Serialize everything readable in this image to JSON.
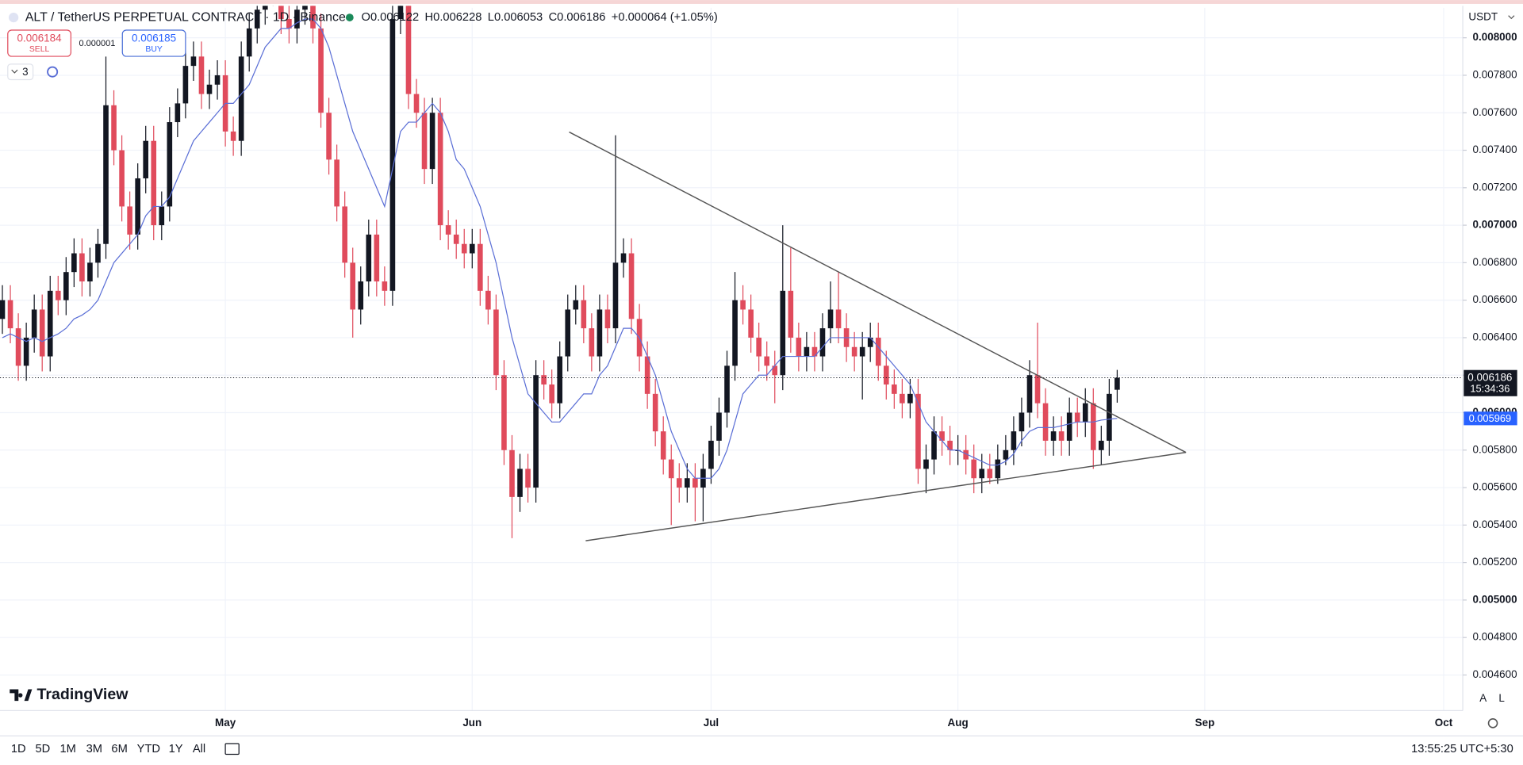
{
  "header": {
    "title": "ALT / TetherUS PERPETUAL CONTRACT · 1D · Binance",
    "legend": [
      {
        "label": "O",
        "value": "0.006122"
      },
      {
        "label": "H",
        "value": "0.006228"
      },
      {
        "label": "L",
        "value": "0.006053"
      },
      {
        "label": "C",
        "value": "0.006186"
      }
    ],
    "change": "+0.000064 (+1.05%)",
    "currency": "USDT"
  },
  "trade": {
    "sell_price": "0.006184",
    "sell": "SELL",
    "spread": "0.000001",
    "buy_price": "0.006185",
    "buy": "BUY"
  },
  "indicators_count": 3,
  "chart_data": {
    "type": "candlestick",
    "open": [
      0.0065,
      0.0066,
      0.00645,
      0.00625,
      0.0064,
      0.00655,
      0.0063,
      0.00665,
      0.0066,
      0.00675,
      0.00685,
      0.0067,
      0.0068,
      0.0069,
      0.00764,
      0.0074,
      0.0071,
      0.00695,
      0.00725,
      0.00745,
      0.007,
      0.0071,
      0.00755,
      0.00765,
      0.00785,
      0.0079,
      0.0077,
      0.00775,
      0.0078,
      0.0075,
      0.00745,
      0.0079,
      0.00805,
      0.00815,
      0.00825,
      0.0083,
      0.0081,
      0.00805,
      0.00815,
      0.0082,
      0.00805,
      0.0076,
      0.00735,
      0.0071,
      0.0068,
      0.00655,
      0.0067,
      0.00695,
      0.0067,
      0.00665,
      0.0081,
      0.00825,
      0.0077,
      0.0076,
      0.0073,
      0.0076,
      0.007,
      0.00695,
      0.0069,
      0.00685,
      0.0069,
      0.00665,
      0.00655,
      0.0062,
      0.0058,
      0.00555,
      0.0057,
      0.0056,
      0.0062,
      0.00615,
      0.00605,
      0.0063,
      0.00655,
      0.0066,
      0.00645,
      0.0063,
      0.00655,
      0.00645,
      0.0068,
      0.00685,
      0.0065,
      0.0063,
      0.0061,
      0.0059,
      0.00575,
      0.00565,
      0.0056,
      0.00565,
      0.0056,
      0.0057,
      0.00585,
      0.006,
      0.00625,
      0.0066,
      0.00655,
      0.0064,
      0.0063,
      0.00625,
      0.0062,
      0.00665,
      0.0064,
      0.0063,
      0.00635,
      0.0063,
      0.00645,
      0.00655,
      0.00645,
      0.00635,
      0.0063,
      0.00635,
      0.0064,
      0.00625,
      0.00615,
      0.0061,
      0.00605,
      0.0061,
      0.0057,
      0.00575,
      0.0059,
      0.00585,
      0.0058,
      0.0058,
      0.00575,
      0.00565,
      0.0057,
      0.00565,
      0.00575,
      0.0058,
      0.0059,
      0.006,
      0.0062,
      0.00605,
      0.00585,
      0.0059,
      0.00585,
      0.006,
      0.00595,
      0.00605,
      0.0058,
      0.00585,
      0.006122
    ],
    "high": [
      0.00668,
      0.00668,
      0.00653,
      0.00648,
      0.00663,
      0.00663,
      0.00673,
      0.00673,
      0.00683,
      0.00693,
      0.00693,
      0.00688,
      0.00698,
      0.0079,
      0.00772,
      0.00748,
      0.00718,
      0.00733,
      0.00753,
      0.00753,
      0.00718,
      0.00763,
      0.00773,
      0.00793,
      0.00798,
      0.00798,
      0.00783,
      0.00788,
      0.00788,
      0.00758,
      0.00798,
      0.00813,
      0.00823,
      0.00833,
      0.00838,
      0.00838,
      0.00818,
      0.00823,
      0.00828,
      0.00828,
      0.00813,
      0.00768,
      0.00743,
      0.00718,
      0.00688,
      0.00678,
      0.00703,
      0.00703,
      0.00678,
      0.0083,
      0.0084,
      0.00833,
      0.00778,
      0.00768,
      0.00768,
      0.00768,
      0.00708,
      0.00703,
      0.00698,
      0.00698,
      0.00698,
      0.00673,
      0.00663,
      0.00628,
      0.00588,
      0.00578,
      0.00578,
      0.00628,
      0.00628,
      0.00623,
      0.00638,
      0.00663,
      0.00668,
      0.00668,
      0.00653,
      0.00663,
      0.00663,
      0.00748,
      0.00693,
      0.00693,
      0.00658,
      0.00638,
      0.00618,
      0.00598,
      0.00583,
      0.00573,
      0.00573,
      0.00573,
      0.00578,
      0.00593,
      0.00608,
      0.00633,
      0.00675,
      0.00668,
      0.00663,
      0.00648,
      0.00638,
      0.00633,
      0.007,
      0.00688,
      0.00648,
      0.00643,
      0.00643,
      0.00653,
      0.0067,
      0.00675,
      0.00653,
      0.00643,
      0.00643,
      0.00648,
      0.00648,
      0.00633,
      0.00623,
      0.00618,
      0.00618,
      0.00618,
      0.00583,
      0.00598,
      0.00598,
      0.00593,
      0.00588,
      0.00588,
      0.00583,
      0.00578,
      0.00578,
      0.00583,
      0.00588,
      0.00598,
      0.00608,
      0.00628,
      0.00648,
      0.00613,
      0.00598,
      0.00598,
      0.00608,
      0.00608,
      0.00613,
      0.00613,
      0.00593,
      0.00618,
      0.006228
    ],
    "low": [
      0.00642,
      0.00637,
      0.00617,
      0.00617,
      0.00632,
      0.00622,
      0.00622,
      0.00652,
      0.00652,
      0.00667,
      0.00662,
      0.00662,
      0.00672,
      0.00682,
      0.00732,
      0.00702,
      0.00687,
      0.00687,
      0.00717,
      0.00692,
      0.00692,
      0.00702,
      0.00747,
      0.00757,
      0.00777,
      0.00762,
      0.00762,
      0.00767,
      0.00742,
      0.00737,
      0.00737,
      0.00782,
      0.00797,
      0.00807,
      0.00817,
      0.00802,
      0.00797,
      0.00797,
      0.00807,
      0.00797,
      0.00752,
      0.00727,
      0.00702,
      0.00672,
      0.0064,
      0.00647,
      0.00662,
      0.00662,
      0.00657,
      0.00657,
      0.00802,
      0.00762,
      0.00752,
      0.00722,
      0.00722,
      0.00692,
      0.00687,
      0.00682,
      0.00677,
      0.00677,
      0.00657,
      0.00647,
      0.00612,
      0.00572,
      0.00533,
      0.00547,
      0.00552,
      0.00552,
      0.00607,
      0.00597,
      0.00597,
      0.00622,
      0.00647,
      0.00637,
      0.00622,
      0.00622,
      0.00637,
      0.00637,
      0.00672,
      0.00642,
      0.00622,
      0.00602,
      0.00582,
      0.00567,
      0.0054,
      0.00552,
      0.00552,
      0.00542,
      0.00542,
      0.00562,
      0.00577,
      0.00592,
      0.00617,
      0.00647,
      0.00632,
      0.00622,
      0.00617,
      0.00605,
      0.00612,
      0.00632,
      0.00622,
      0.00622,
      0.00622,
      0.00622,
      0.00637,
      0.00637,
      0.00627,
      0.00622,
      0.00607,
      0.00627,
      0.00617,
      0.00607,
      0.00602,
      0.00597,
      0.00597,
      0.00562,
      0.00557,
      0.00567,
      0.00577,
      0.00572,
      0.00572,
      0.00567,
      0.00557,
      0.00557,
      0.00562,
      0.00562,
      0.00572,
      0.00572,
      0.00582,
      0.00592,
      0.00597,
      0.00577,
      0.00577,
      0.00577,
      0.00577,
      0.00587,
      0.00587,
      0.0057,
      0.00572,
      0.00577,
      0.006053
    ],
    "close": [
      0.0066,
      0.00645,
      0.00625,
      0.0064,
      0.00655,
      0.0063,
      0.00665,
      0.0066,
      0.00675,
      0.00685,
      0.0067,
      0.0068,
      0.0069,
      0.00764,
      0.0074,
      0.0071,
      0.00695,
      0.00725,
      0.00745,
      0.007,
      0.0071,
      0.00755,
      0.00765,
      0.00785,
      0.0079,
      0.0077,
      0.00775,
      0.0078,
      0.0075,
      0.00745,
      0.0079,
      0.00805,
      0.00815,
      0.00825,
      0.0083,
      0.0081,
      0.00805,
      0.00815,
      0.0082,
      0.00805,
      0.0076,
      0.00735,
      0.0071,
      0.0068,
      0.00655,
      0.0067,
      0.00695,
      0.0067,
      0.00665,
      0.0081,
      0.00825,
      0.0077,
      0.0076,
      0.0073,
      0.0076,
      0.007,
      0.00695,
      0.0069,
      0.00685,
      0.0069,
      0.00665,
      0.00655,
      0.0062,
      0.0058,
      0.00555,
      0.0057,
      0.0056,
      0.0062,
      0.00615,
      0.00605,
      0.0063,
      0.00655,
      0.0066,
      0.00645,
      0.0063,
      0.00655,
      0.00645,
      0.0068,
      0.00685,
      0.0065,
      0.0063,
      0.0061,
      0.0059,
      0.00575,
      0.00565,
      0.0056,
      0.00565,
      0.0056,
      0.0057,
      0.00585,
      0.006,
      0.00625,
      0.0066,
      0.00655,
      0.0064,
      0.0063,
      0.00625,
      0.0062,
      0.00665,
      0.0064,
      0.0063,
      0.00635,
      0.0063,
      0.00645,
      0.00655,
      0.00645,
      0.00635,
      0.0063,
      0.00635,
      0.0064,
      0.00625,
      0.00615,
      0.0061,
      0.00605,
      0.0061,
      0.0057,
      0.00575,
      0.0059,
      0.00585,
      0.0058,
      0.0058,
      0.00575,
      0.00565,
      0.0057,
      0.00565,
      0.00575,
      0.0058,
      0.0059,
      0.006,
      0.0062,
      0.00605,
      0.00585,
      0.0059,
      0.00585,
      0.006,
      0.00595,
      0.00605,
      0.0058,
      0.00585,
      0.0061,
      0.006186
    ],
    "ma": [
      0.0064,
      0.00642,
      0.0064,
      0.00638,
      0.0064,
      0.00638,
      0.0064,
      0.00642,
      0.00645,
      0.0065,
      0.00652,
      0.00655,
      0.0066,
      0.0067,
      0.0068,
      0.00685,
      0.0069,
      0.00695,
      0.00705,
      0.0071,
      0.0071,
      0.00715,
      0.00725,
      0.00735,
      0.00745,
      0.0075,
      0.00755,
      0.0076,
      0.00765,
      0.00765,
      0.0077,
      0.00775,
      0.00785,
      0.00795,
      0.008,
      0.00805,
      0.00805,
      0.00808,
      0.0081,
      0.0081,
      0.00805,
      0.00795,
      0.0078,
      0.00765,
      0.0075,
      0.0074,
      0.0073,
      0.0072,
      0.0071,
      0.0073,
      0.0075,
      0.00755,
      0.00755,
      0.0076,
      0.00765,
      0.0076,
      0.0075,
      0.00735,
      0.0073,
      0.0072,
      0.0071,
      0.00695,
      0.0068,
      0.0066,
      0.0064,
      0.00625,
      0.0061,
      0.00605,
      0.006,
      0.00595,
      0.00595,
      0.006,
      0.00605,
      0.0061,
      0.0061,
      0.0062,
      0.00625,
      0.00635,
      0.00645,
      0.00645,
      0.0064,
      0.0063,
      0.0062,
      0.00605,
      0.0059,
      0.0058,
      0.0057,
      0.00565,
      0.00565,
      0.00565,
      0.0057,
      0.0058,
      0.00595,
      0.0061,
      0.00615,
      0.0062,
      0.0062,
      0.00625,
      0.0063,
      0.0063,
      0.0063,
      0.0063,
      0.0063,
      0.00635,
      0.0064,
      0.0064,
      0.0064,
      0.0064,
      0.0064,
      0.0064,
      0.00635,
      0.0063,
      0.00625,
      0.0062,
      0.00615,
      0.00605,
      0.00595,
      0.0059,
      0.00585,
      0.0058,
      0.0058,
      0.00578,
      0.00576,
      0.00574,
      0.00572,
      0.00572,
      0.00574,
      0.00578,
      0.00585,
      0.0059,
      0.00592,
      0.00592,
      0.00592,
      0.00593,
      0.00594,
      0.00595,
      0.00595,
      0.00595,
      0.00596,
      0.005965,
      0.005969
    ],
    "ma_color": "#5b6fd6",
    "up_color": "#131722",
    "down_color": "#e04b5c",
    "xlim": [
      -0.3,
      183.4
    ],
    "xticks": [
      {
        "value": 28,
        "label": "May"
      },
      {
        "value": 59,
        "label": "Jun"
      },
      {
        "value": 89,
        "label": "Jul"
      },
      {
        "value": 120,
        "label": "Aug"
      },
      {
        "value": 151,
        "label": "Sep"
      },
      {
        "value": 181,
        "label": "Oct"
      }
    ],
    "ylim": [
      0.00441,
      0.00816
    ],
    "yticks": [
      {
        "value": 0.008,
        "label": "0.008000"
      },
      {
        "value": 0.0078,
        "label": "0.007800"
      },
      {
        "value": 0.0076,
        "label": "0.007600"
      },
      {
        "value": 0.0074,
        "label": "0.007400"
      },
      {
        "value": 0.0072,
        "label": "0.007200"
      },
      {
        "value": 0.007,
        "label": "0.007000"
      },
      {
        "value": 0.0068,
        "label": "0.006800"
      },
      {
        "value": 0.0066,
        "label": "0.006600"
      },
      {
        "value": 0.0064,
        "label": "0.006400"
      },
      {
        "value": 0.0062,
        "label": "0.006200"
      },
      {
        "value": 0.006,
        "label": "0.006000"
      },
      {
        "value": 0.0058,
        "label": "0.005800"
      },
      {
        "value": 0.0056,
        "label": "0.005600"
      },
      {
        "value": 0.0054,
        "label": "0.005400"
      },
      {
        "value": 0.0052,
        "label": "0.005200"
      },
      {
        "value": 0.005,
        "label": "0.005000"
      },
      {
        "value": 0.0048,
        "label": "0.004800"
      },
      {
        "value": 0.0046,
        "label": "0.004600"
      }
    ],
    "grid": true,
    "last_price_countdown": "15:34:36"
  },
  "logo": "TradingView",
  "ranges": [
    "1D",
    "5D",
    "1M",
    "3M",
    "6M",
    "YTD",
    "1Y",
    "All"
  ],
  "clock": "13:55:25 UTC+5:30",
  "scale_buttons": [
    "A",
    "L"
  ]
}
